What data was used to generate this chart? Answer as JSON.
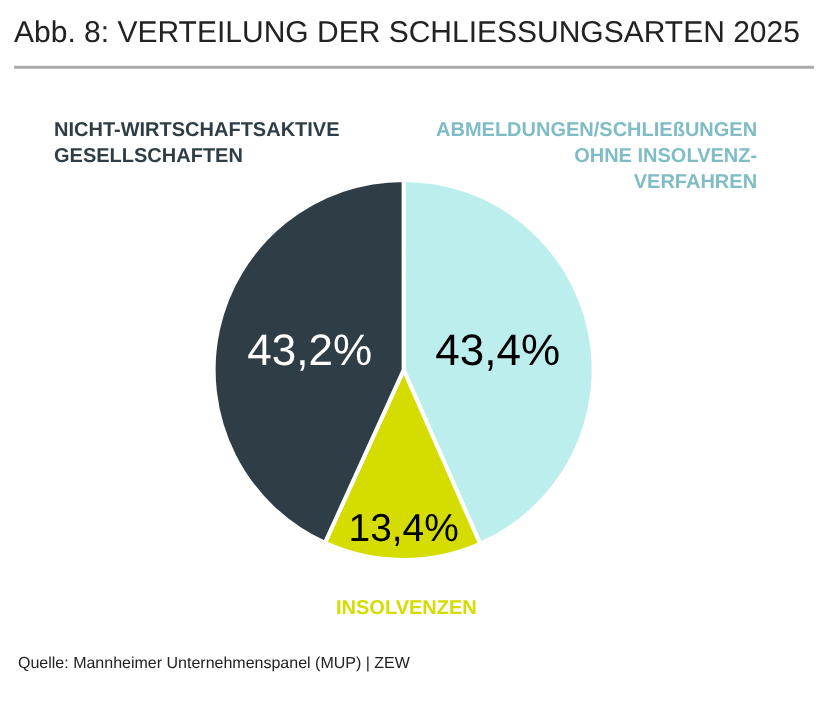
{
  "chart_data": {
    "type": "pie",
    "title": "Abb. 8: VERTEILUNG DER SCHLIESSUNGSARTEN 2025",
    "categories": [
      "ABMELDUNGEN/SCHLIEßUNGEN OHNE INSOLVENZ-VERFAHREN",
      "INSOLVENZEN",
      "NICHT-WIRTSCHAFTSAKTIVE GESELLSCHAFTEN"
    ],
    "values": [
      43.4,
      13.4,
      43.2
    ],
    "colors": [
      "#bdeeee",
      "#d4dc00",
      "#2f3e46"
    ],
    "value_labels": [
      "43,4%",
      "13,4%",
      "43,2%"
    ],
    "annotations": [
      "Quelle: Mannheimer Unternehmenspanel (MUP) | ZEW"
    ]
  }
}
